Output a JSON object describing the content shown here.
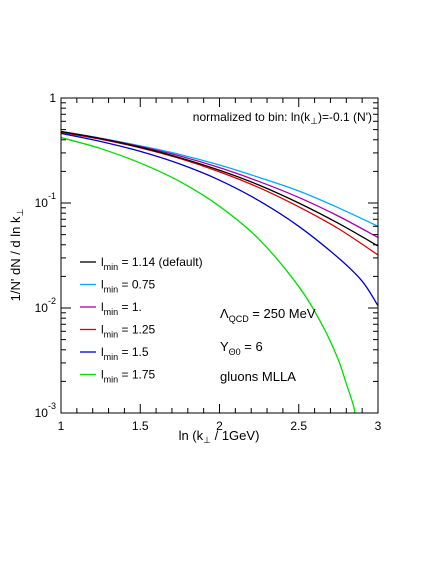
{
  "chart_data": {
    "type": "line",
    "title": "",
    "annotation": {
      "prefix": "normalized to bin: ln(k",
      "sub": "⊥",
      "suffix": ")=-0.1 (N')"
    },
    "xlabel": {
      "prefix": "ln (k",
      "sub": "⊥",
      "suffix": " / 1GeV)"
    },
    "ylabel": {
      "prefix": "1/N' dN / d ln k",
      "sub": "⊥"
    },
    "xlim": [
      1,
      3
    ],
    "ylim": [
      0.001,
      1
    ],
    "yscale": "log",
    "xticks": [
      {
        "value": 1,
        "label": "1"
      },
      {
        "value": 1.5,
        "label": "1.5"
      },
      {
        "value": 2,
        "label": "2"
      },
      {
        "value": 2.5,
        "label": "2.5"
      },
      {
        "value": 3,
        "label": "3"
      }
    ],
    "yticks": [
      {
        "value": 1,
        "base": "1",
        "exp": ""
      },
      {
        "value": 0.1,
        "base": "10",
        "exp": "-1"
      },
      {
        "value": 0.01,
        "base": "10",
        "exp": "-2"
      },
      {
        "value": 0.001,
        "base": "10",
        "exp": "-3"
      }
    ],
    "legend_placement": "left",
    "series": [
      {
        "name": "1.14 (default)",
        "color": "#000000",
        "x": [
          1.0,
          1.25,
          1.5,
          1.75,
          2.0,
          2.25,
          2.5,
          2.75,
          3.0
        ],
        "y": [
          0.48,
          0.41,
          0.34,
          0.27,
          0.205,
          0.148,
          0.1,
          0.064,
          0.039
        ]
      },
      {
        "name": "0.75",
        "color": "#00aaff",
        "x": [
          1.0,
          1.25,
          1.5,
          1.75,
          2.0,
          2.25,
          2.5,
          2.75,
          3.0
        ],
        "y": [
          0.48,
          0.415,
          0.35,
          0.29,
          0.23,
          0.175,
          0.13,
          0.09,
          0.06
        ]
      },
      {
        "name": "1.",
        "color": "#aa00aa",
        "x": [
          1.0,
          1.25,
          1.5,
          1.75,
          2.0,
          2.25,
          2.5,
          2.75,
          3.0
        ],
        "y": [
          0.48,
          0.413,
          0.345,
          0.28,
          0.217,
          0.16,
          0.113,
          0.075,
          0.047
        ]
      },
      {
        "name": "1.25",
        "color": "#dd0000",
        "x": [
          1.0,
          1.25,
          1.5,
          1.75,
          2.0,
          2.25,
          2.5,
          2.75,
          3.0
        ],
        "y": [
          0.47,
          0.405,
          0.335,
          0.265,
          0.198,
          0.14,
          0.092,
          0.057,
          0.032
        ]
      },
      {
        "name": "1.5",
        "color": "#0000cc",
        "x": [
          1.0,
          1.25,
          1.5,
          1.75,
          2.0,
          2.25,
          2.5,
          2.75,
          2.9,
          3.0
        ],
        "y": [
          0.46,
          0.385,
          0.31,
          0.235,
          0.165,
          0.105,
          0.06,
          0.03,
          0.018,
          0.0105
        ]
      },
      {
        "name": "1.75",
        "color": "#00dd00",
        "x": [
          1.0,
          1.25,
          1.5,
          1.75,
          2.0,
          2.25,
          2.5,
          2.65,
          2.75,
          2.8,
          2.84,
          2.855
        ],
        "y": [
          0.42,
          0.33,
          0.24,
          0.16,
          0.093,
          0.045,
          0.016,
          0.0068,
          0.0032,
          0.0019,
          0.00125,
          0.001
        ]
      }
    ],
    "legend_prefix": "l",
    "legend_sub": "min",
    "legend_sep": " = ",
    "params": [
      {
        "sym": "Λ",
        "sub": "QCD",
        "rest": " = 250 MeV"
      },
      {
        "sym": "Y",
        "sub": "Θ0",
        "rest": " = 6"
      },
      {
        "sym": "gluons MLLA",
        "sub": "",
        "rest": ""
      }
    ]
  }
}
